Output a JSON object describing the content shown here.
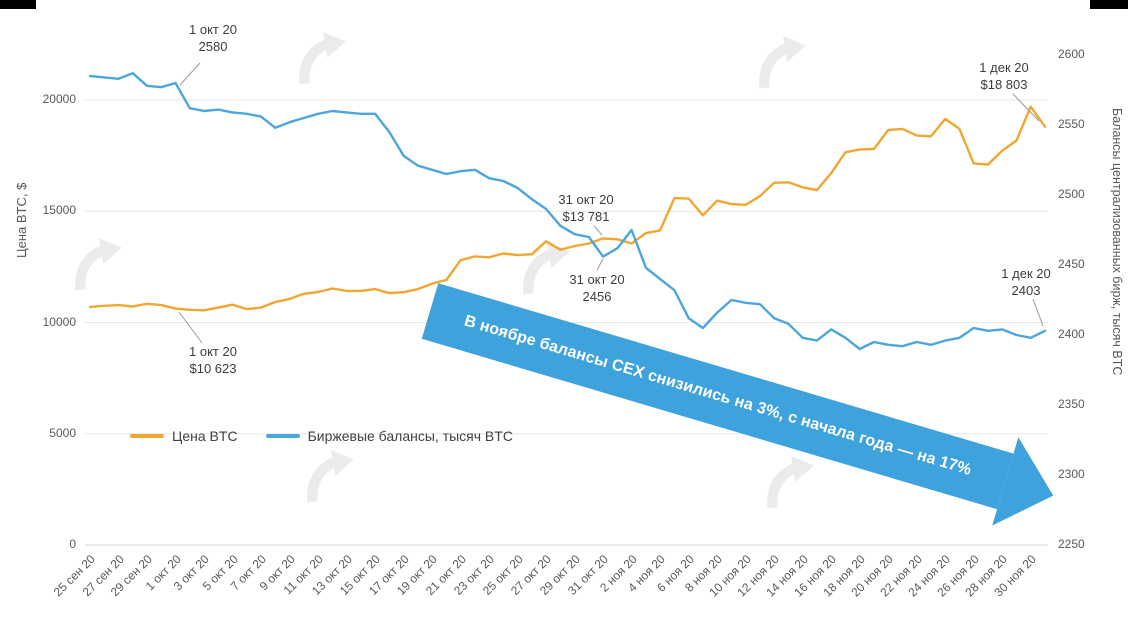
{
  "figure": {
    "background": "#ffffff"
  },
  "arrow": {
    "text": "В ноябре балансы CEX снизились на 3%, с начала года — на 17%",
    "color": "#3EA2DC"
  },
  "annotations": {
    "oct1_balance": {
      "line1": "1 окт 20",
      "line2": "2580"
    },
    "oct1_price": {
      "line1": "1 окт 20",
      "line2": "$10 623"
    },
    "oct31_price": {
      "line1": "31 окт 20",
      "line2": "$13 781"
    },
    "oct31_balance": {
      "line1": "31 окт 20",
      "line2": "2456"
    },
    "dec1_price": {
      "line1": "1 дек 20",
      "line2": "$18 803"
    },
    "dec1_balance": {
      "line1": "1 дек 20",
      "line2": "2403"
    }
  },
  "chart_data": {
    "type": "line",
    "title": "",
    "grid": "horizontal",
    "legend_position": "inside-bottom-left",
    "x": [
      "25 сен 20",
      "26 сен 20",
      "27 сен 20",
      "28 сен 20",
      "29 сен 20",
      "30 сен 20",
      "1 окт 20",
      "2 окт 20",
      "3 окт 20",
      "4 окт 20",
      "5 окт 20",
      "6 окт 20",
      "7 окт 20",
      "8 окт 20",
      "9 окт 20",
      "10 окт 20",
      "11 окт 20",
      "12 окт 20",
      "13 окт 20",
      "14 окт 20",
      "15 окт 20",
      "16 окт 20",
      "17 окт 20",
      "18 окт 20",
      "19 окт 20",
      "20 окт 20",
      "21 окт 20",
      "22 окт 20",
      "23 окт 20",
      "24 окт 20",
      "25 окт 20",
      "26 окт 20",
      "27 окт 20",
      "28 окт 20",
      "29 окт 20",
      "30 окт 20",
      "31 окт 20",
      "1 ноя 20",
      "2 ноя 20",
      "3 ноя 20",
      "4 ноя 20",
      "5 ноя 20",
      "6 ноя 20",
      "7 ноя 20",
      "8 ноя 20",
      "9 ноя 20",
      "10 ноя 20",
      "11 ноя 20",
      "12 ноя 20",
      "13 ноя 20",
      "14 ноя 20",
      "15 ноя 20",
      "16 ноя 20",
      "17 ноя 20",
      "18 ноя 20",
      "19 ноя 20",
      "20 ноя 20",
      "21 ноя 20",
      "22 ноя 20",
      "23 ноя 20",
      "24 ноя 20",
      "25 ноя 20",
      "26 ноя 20",
      "27 ноя 20",
      "28 ноя 20",
      "29 ноя 20",
      "30 ноя 20",
      "1 дек 20"
    ],
    "left_axis": {
      "title": "Цена BTC, $",
      "ticks": [
        0,
        5000,
        10000,
        15000,
        20000
      ],
      "range": [
        0,
        22250
      ]
    },
    "right_axis": {
      "title": "Балансы централизованных бирж, тысяч BTC",
      "ticks": [
        2250,
        2300,
        2350,
        2400,
        2450,
        2500,
        2550,
        2600
      ],
      "range": [
        2250,
        2603
      ]
    },
    "series": [
      {
        "name": "Цена BTC",
        "axis": "left",
        "color": "#F0A732",
        "values": [
          10700,
          10750,
          10780,
          10720,
          10840,
          10780,
          10623,
          10570,
          10550,
          10670,
          10800,
          10600,
          10670,
          10920,
          11060,
          11290,
          11370,
          11530,
          11420,
          11420,
          11500,
          11320,
          11360,
          11500,
          11750,
          11910,
          12800,
          12970,
          12930,
          13100,
          13030,
          13070,
          13650,
          13270,
          13440,
          13550,
          13781,
          13740,
          13550,
          14020,
          14140,
          15590,
          15570,
          14820,
          15480,
          15320,
          15290,
          15680,
          16280,
          16300,
          16070,
          15950,
          16710,
          17650,
          17780,
          17800,
          18650,
          18700,
          18400,
          18370,
          19150,
          18700,
          17150,
          17100,
          17720,
          18180,
          19700,
          18803
        ]
      },
      {
        "name": "Биржевые балансы, тысяч BTC",
        "axis": "right",
        "color": "#4DA6DB",
        "values": [
          2585,
          2584,
          2583,
          2587,
          2578,
          2577,
          2580,
          2562,
          2560,
          2561,
          2559,
          2558,
          2556,
          2548,
          2552,
          2555,
          2558,
          2560,
          2559,
          2558,
          2558,
          2545,
          2528,
          2521,
          2518,
          2515,
          2517,
          2518,
          2512,
          2510,
          2505,
          2497,
          2490,
          2478,
          2472,
          2470,
          2456,
          2462,
          2475,
          2448,
          2440,
          2432,
          2412,
          2405,
          2416,
          2425,
          2423,
          2422,
          2412,
          2408,
          2398,
          2396,
          2404,
          2398,
          2390,
          2395,
          2393,
          2392,
          2395,
          2393,
          2396,
          2398,
          2405,
          2403,
          2404,
          2400,
          2398,
          2403
        ]
      }
    ]
  }
}
